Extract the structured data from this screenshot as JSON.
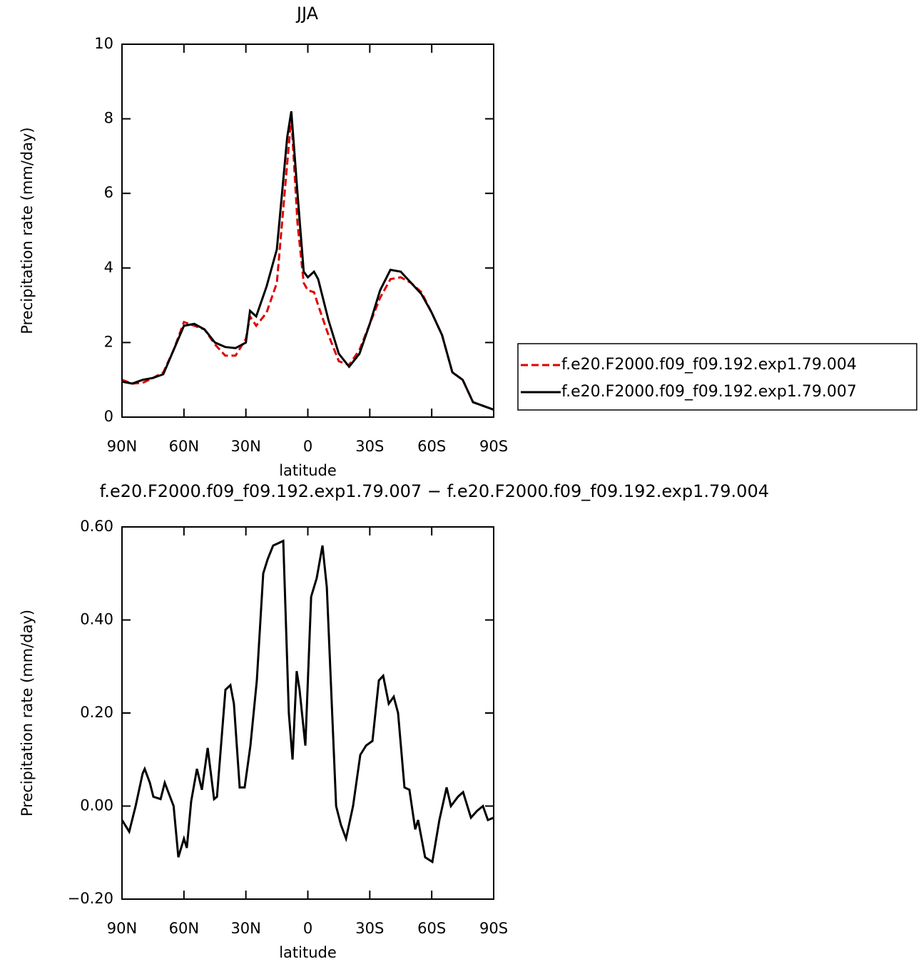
{
  "chart_data": [
    {
      "type": "line",
      "title": "JJA",
      "x_label": "latitude",
      "y_label": "Precipitation rate (mm/day)",
      "x": [
        90,
        85,
        80,
        75,
        70,
        65,
        60,
        55,
        50,
        45,
        40,
        35,
        30,
        28,
        25,
        20,
        15,
        10,
        8,
        5,
        2,
        0,
        -3,
        -5,
        -10,
        -15,
        -20,
        -25,
        -30,
        -35,
        -40,
        -45,
        -50,
        -55,
        -60,
        -65,
        -70,
        -75,
        -80,
        -85,
        -90
      ],
      "series": [
        {
          "name": "f.e20.F2000.f09_f09.192.exp1.79.004",
          "color": "#e00000",
          "dash": true,
          "values": [
            1.0,
            0.9,
            0.92,
            1.05,
            1.2,
            1.8,
            2.55,
            2.45,
            2.35,
            1.95,
            1.65,
            1.65,
            2.1,
            2.7,
            2.45,
            2.8,
            3.6,
            6.8,
            8.05,
            5.2,
            3.6,
            3.4,
            3.35,
            3.0,
            2.2,
            1.5,
            1.4,
            1.8,
            2.5,
            3.2,
            3.7,
            3.75,
            3.6,
            3.35,
            2.8,
            2.2,
            1.2,
            1.0,
            0.4,
            0.3,
            0.2
          ]
        },
        {
          "name": "f.e20.F2000.f09_f09.192.exp1.79.007",
          "color": "#000000",
          "dash": false,
          "values": [
            0.95,
            0.9,
            1.0,
            1.05,
            1.15,
            1.8,
            2.45,
            2.5,
            2.35,
            2.0,
            1.88,
            1.85,
            2.0,
            2.85,
            2.7,
            3.5,
            4.5,
            7.5,
            8.2,
            6.0,
            3.9,
            3.75,
            3.9,
            3.7,
            2.6,
            1.7,
            1.35,
            1.7,
            2.5,
            3.4,
            3.95,
            3.9,
            3.6,
            3.3,
            2.8,
            2.2,
            1.2,
            1.0,
            0.4,
            0.3,
            0.2
          ]
        }
      ],
      "xlim": [
        90,
        -90
      ],
      "xticks": [
        {
          "value": 90,
          "label": "90N"
        },
        {
          "value": 60,
          "label": "60N"
        },
        {
          "value": 30,
          "label": "30N"
        },
        0,
        {
          "value": -30,
          "label": "30S"
        },
        {
          "value": -60,
          "label": "60S"
        },
        {
          "value": -90,
          "label": "90S"
        }
      ],
      "ylim": [
        0,
        10
      ],
      "yticks": [
        0,
        2,
        4,
        6,
        8,
        10
      ],
      "legend": "right"
    },
    {
      "type": "line",
      "title": "f.e20.F2000.f09_f09.192.exp1.79.007 − f.e20.F2000.f09_f09.192.exp1.79.004",
      "x_label": "latitude",
      "y_label": "Precipitation rate (mm/day)",
      "x": [
        90,
        86.5,
        83.4,
        80,
        79,
        76.5,
        74.8,
        71.3,
        69.3,
        65,
        62.7,
        60,
        58.6,
        56.5,
        53.7,
        51.3,
        48.5,
        45.4,
        44,
        39.9,
        37.5,
        35.8,
        33,
        30.6,
        27.8,
        24.7,
        21.6,
        19.5,
        16.8,
        14.3,
        11.9,
        9.2,
        7.4,
        5.4,
        4,
        1.2,
        -1.6,
        -4.3,
        -7.1,
        -9.2,
        -13.7,
        -16,
        -18.5,
        -21.9,
        -25.4,
        -28.2,
        -31.3,
        -34.4,
        -36.5,
        -39.2,
        -41.6,
        -43.7,
        -46.8,
        -49.2,
        -52,
        -53.4,
        -56.8,
        -60.3,
        -63.7,
        -67.2,
        -69.3,
        -72.7,
        -75.2,
        -79,
        -82,
        -84.8,
        -87.2,
        -90
      ],
      "series": [
        {
          "color": "#000000",
          "dash": false,
          "values": [
            -0.03,
            -0.055,
            0.0,
            0.07,
            0.08,
            0.05,
            0.02,
            0.015,
            0.05,
            0.0,
            -0.11,
            -0.07,
            -0.09,
            0.01,
            0.08,
            0.035,
            0.125,
            0.015,
            0.02,
            0.25,
            0.26,
            0.22,
            0.04,
            0.04,
            0.13,
            0.27,
            0.5,
            0.53,
            0.56,
            0.565,
            0.57,
            0.2,
            0.1,
            0.29,
            0.25,
            0.13,
            0.45,
            0.49,
            0.56,
            0.47,
            0.0,
            -0.04,
            -0.07,
            0.0,
            0.11,
            0.13,
            0.14,
            0.27,
            0.28,
            0.22,
            0.235,
            0.2,
            0.04,
            0.035,
            -0.05,
            -0.03,
            -0.11,
            -0.12,
            -0.03,
            0.04,
            0.0,
            0.02,
            0.03,
            -0.025,
            -0.01,
            0.0,
            -0.03,
            -0.025
          ]
        }
      ],
      "xlim": [
        90,
        -90
      ],
      "xticks": [
        {
          "value": 90,
          "label": "90N"
        },
        {
          "value": 60,
          "label": "60N"
        },
        {
          "value": 30,
          "label": "30N"
        },
        0,
        {
          "value": -30,
          "label": "30S"
        },
        {
          "value": -60,
          "label": "60S"
        },
        {
          "value": -90,
          "label": "90S"
        }
      ],
      "ylim": [
        -0.2,
        0.6
      ],
      "yticks": [
        {
          "value": -0.2,
          "label": "−0.20"
        },
        {
          "value": 0,
          "label": "0.00"
        },
        {
          "value": 0.2,
          "label": "0.20"
        },
        {
          "value": 0.4,
          "label": "0.40"
        },
        {
          "value": 0.6,
          "label": "0.60"
        }
      ]
    }
  ]
}
